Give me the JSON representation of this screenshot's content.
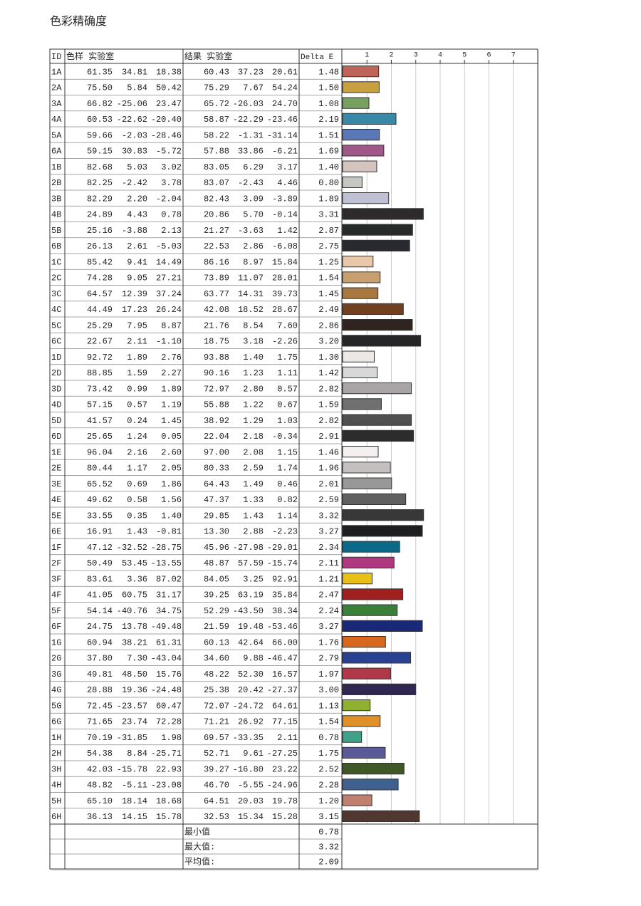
{
  "title": "色彩精确度",
  "table": {
    "header": [
      "ID",
      "色样 实验室",
      "结果 实验室",
      "Delta E"
    ],
    "axis": {
      "xlim": [
        0,
        8
      ],
      "xticks": [
        1,
        2,
        3,
        4,
        5,
        6,
        7
      ]
    },
    "rows": [
      {
        "id": "1A",
        "sample": [
          "61.35",
          "34.81",
          "18.38"
        ],
        "result": [
          "60.43",
          "37.23",
          "20.61"
        ],
        "delta_e": "1.48",
        "color": "#c0645a"
      },
      {
        "id": "2A",
        "sample": [
          "75.50",
          "5.84",
          "50.42"
        ],
        "result": [
          "75.29",
          "7.67",
          "54.24"
        ],
        "delta_e": "1.50",
        "color": "#c8a040"
      },
      {
        "id": "3A",
        "sample": [
          "66.82",
          "-25.06",
          "23.47"
        ],
        "result": [
          "65.72",
          "-26.03",
          "24.70"
        ],
        "delta_e": "1.08",
        "color": "#78a060"
      },
      {
        "id": "4A",
        "sample": [
          "60.53",
          "-22.62",
          "-20.40"
        ],
        "result": [
          "58.87",
          "-22.29",
          "-23.46"
        ],
        "delta_e": "2.19",
        "color": "#3a88a8"
      },
      {
        "id": "5A",
        "sample": [
          "59.66",
          "-2.03",
          "-28.46"
        ],
        "result": [
          "58.22",
          "-1.31",
          "-31.14"
        ],
        "delta_e": "1.51",
        "color": "#5a78b8"
      },
      {
        "id": "6A",
        "sample": [
          "59.15",
          "30.83",
          "-5.72"
        ],
        "result": [
          "57.88",
          "33.86",
          "-6.21"
        ],
        "delta_e": "1.69",
        "color": "#a05888"
      },
      {
        "id": "1B",
        "sample": [
          "82.68",
          "5.03",
          "3.02"
        ],
        "result": [
          "83.05",
          "6.29",
          "3.17"
        ],
        "delta_e": "1.40",
        "color": "#d4c4c0"
      },
      {
        "id": "2B",
        "sample": [
          "82.25",
          "-2.42",
          "3.78"
        ],
        "result": [
          "83.07",
          "-2.43",
          "4.46"
        ],
        "delta_e": "0.80",
        "color": "#c4c8c0"
      },
      {
        "id": "3B",
        "sample": [
          "82.29",
          "2.20",
          "-2.04"
        ],
        "result": [
          "82.43",
          "3.09",
          "-3.89"
        ],
        "delta_e": "1.89",
        "color": "#c0c0d4"
      },
      {
        "id": "4B",
        "sample": [
          "24.89",
          "4.43",
          "0.78"
        ],
        "result": [
          "20.86",
          "5.70",
          "-0.14"
        ],
        "delta_e": "3.31",
        "color": "#2e2a2c"
      },
      {
        "id": "5B",
        "sample": [
          "25.16",
          "-3.88",
          "2.13"
        ],
        "result": [
          "21.27",
          "-3.63",
          "1.42"
        ],
        "delta_e": "2.87",
        "color": "#262a28"
      },
      {
        "id": "6B",
        "sample": [
          "26.13",
          "2.61",
          "-5.03"
        ],
        "result": [
          "22.53",
          "2.86",
          "-6.08"
        ],
        "delta_e": "2.75",
        "color": "#282a30"
      },
      {
        "id": "1C",
        "sample": [
          "85.42",
          "9.41",
          "14.49"
        ],
        "result": [
          "86.16",
          "8.97",
          "15.84"
        ],
        "delta_e": "1.25",
        "color": "#e8c8a8"
      },
      {
        "id": "2C",
        "sample": [
          "74.28",
          "9.05",
          "27.21"
        ],
        "result": [
          "73.89",
          "11.07",
          "28.01"
        ],
        "delta_e": "1.54",
        "color": "#c8a070"
      },
      {
        "id": "3C",
        "sample": [
          "64.57",
          "12.39",
          "37.24"
        ],
        "result": [
          "63.77",
          "14.31",
          "39.73"
        ],
        "delta_e": "1.45",
        "color": "#a87840"
      },
      {
        "id": "4C",
        "sample": [
          "44.49",
          "17.23",
          "26.24"
        ],
        "result": [
          "42.08",
          "18.52",
          "28.67"
        ],
        "delta_e": "2.49",
        "color": "#704020"
      },
      {
        "id": "5C",
        "sample": [
          "25.29",
          "7.95",
          "8.87"
        ],
        "result": [
          "21.76",
          "8.54",
          "7.60"
        ],
        "delta_e": "2.86",
        "color": "#302420"
      },
      {
        "id": "6C",
        "sample": [
          "22.67",
          "2.11",
          "-1.10"
        ],
        "result": [
          "18.75",
          "3.18",
          "-2.26"
        ],
        "delta_e": "3.20",
        "color": "#262628"
      },
      {
        "id": "1D",
        "sample": [
          "92.72",
          "1.89",
          "2.76"
        ],
        "result": [
          "93.88",
          "1.40",
          "1.75"
        ],
        "delta_e": "1.30",
        "color": "#ece8e4"
      },
      {
        "id": "2D",
        "sample": [
          "88.85",
          "1.59",
          "2.27"
        ],
        "result": [
          "90.16",
          "1.23",
          "1.11"
        ],
        "delta_e": "1.42",
        "color": "#d8d8d8"
      },
      {
        "id": "3D",
        "sample": [
          "73.42",
          "0.99",
          "1.89"
        ],
        "result": [
          "72.97",
          "2.80",
          "0.57"
        ],
        "delta_e": "2.82",
        "color": "#a8a4a8"
      },
      {
        "id": "4D",
        "sample": [
          "57.15",
          "0.57",
          "1.19"
        ],
        "result": [
          "55.88",
          "1.22",
          "0.67"
        ],
        "delta_e": "1.59",
        "color": "#707070"
      },
      {
        "id": "5D",
        "sample": [
          "41.57",
          "0.24",
          "1.45"
        ],
        "result": [
          "38.92",
          "1.29",
          "1.03"
        ],
        "delta_e": "2.82",
        "color": "#505050"
      },
      {
        "id": "6D",
        "sample": [
          "25.65",
          "1.24",
          "0.05"
        ],
        "result": [
          "22.04",
          "2.18",
          "-0.34"
        ],
        "delta_e": "2.91",
        "color": "#2c2c2c"
      },
      {
        "id": "1E",
        "sample": [
          "96.04",
          "2.16",
          "2.60"
        ],
        "result": [
          "97.00",
          "2.08",
          "1.15"
        ],
        "delta_e": "1.46",
        "color": "#f4f0f0"
      },
      {
        "id": "2E",
        "sample": [
          "80.44",
          "1.17",
          "2.05"
        ],
        "result": [
          "80.33",
          "2.59",
          "1.74"
        ],
        "delta_e": "1.96",
        "color": "#c4c0c0"
      },
      {
        "id": "3E",
        "sample": [
          "65.52",
          "0.69",
          "1.86"
        ],
        "result": [
          "64.43",
          "1.49",
          "0.46"
        ],
        "delta_e": "2.01",
        "color": "#989898"
      },
      {
        "id": "4E",
        "sample": [
          "49.62",
          "0.58",
          "1.56"
        ],
        "result": [
          "47.37",
          "1.33",
          "0.82"
        ],
        "delta_e": "2.59",
        "color": "#606060"
      },
      {
        "id": "5E",
        "sample": [
          "33.55",
          "0.35",
          "1.40"
        ],
        "result": [
          "29.85",
          "1.43",
          "1.14"
        ],
        "delta_e": "3.32",
        "color": "#383838"
      },
      {
        "id": "6E",
        "sample": [
          "16.91",
          "1.43",
          "-0.81"
        ],
        "result": [
          "13.30",
          "2.88",
          "-2.23"
        ],
        "delta_e": "3.27",
        "color": "#1e1e20"
      },
      {
        "id": "1F",
        "sample": [
          "47.12",
          "-32.52",
          "-28.75"
        ],
        "result": [
          "45.96",
          "-27.98",
          "-29.01"
        ],
        "delta_e": "2.34",
        "color": "#0a6888"
      },
      {
        "id": "2F",
        "sample": [
          "50.49",
          "53.45",
          "-13.55"
        ],
        "result": [
          "48.87",
          "57.59",
          "-15.74"
        ],
        "delta_e": "2.11",
        "color": "#b03880"
      },
      {
        "id": "3F",
        "sample": [
          "83.61",
          "3.36",
          "87.02"
        ],
        "result": [
          "84.05",
          "3.25",
          "92.91"
        ],
        "delta_e": "1.21",
        "color": "#e8c018"
      },
      {
        "id": "4F",
        "sample": [
          "41.05",
          "60.75",
          "31.17"
        ],
        "result": [
          "39.25",
          "63.19",
          "35.84"
        ],
        "delta_e": "2.47",
        "color": "#a02020"
      },
      {
        "id": "5F",
        "sample": [
          "54.14",
          "-40.76",
          "34.75"
        ],
        "result": [
          "52.29",
          "-43.50",
          "38.34"
        ],
        "delta_e": "2.24",
        "color": "#3a8038"
      },
      {
        "id": "6F",
        "sample": [
          "24.75",
          "13.78",
          "-49.48"
        ],
        "result": [
          "21.59",
          "19.48",
          "-53.46"
        ],
        "delta_e": "3.27",
        "color": "#1a2878"
      },
      {
        "id": "1G",
        "sample": [
          "60.94",
          "38.21",
          "61.31"
        ],
        "result": [
          "60.13",
          "42.64",
          "66.00"
        ],
        "delta_e": "1.76",
        "color": "#d86820"
      },
      {
        "id": "2G",
        "sample": [
          "37.80",
          "7.30",
          "-43.04"
        ],
        "result": [
          "34.60",
          "9.88",
          "-46.47"
        ],
        "delta_e": "2.79",
        "color": "#2a4090"
      },
      {
        "id": "3G",
        "sample": [
          "49.81",
          "48.50",
          "15.76"
        ],
        "result": [
          "48.22",
          "52.30",
          "16.57"
        ],
        "delta_e": "1.97",
        "color": "#b03848"
      },
      {
        "id": "4G",
        "sample": [
          "28.88",
          "19.36",
          "-24.48"
        ],
        "result": [
          "25.38",
          "20.42",
          "-27.37"
        ],
        "delta_e": "3.00",
        "color": "#302850"
      },
      {
        "id": "5G",
        "sample": [
          "72.45",
          "-23.57",
          "60.47"
        ],
        "result": [
          "72.07",
          "-24.72",
          "64.61"
        ],
        "delta_e": "1.13",
        "color": "#90b030"
      },
      {
        "id": "6G",
        "sample": [
          "71.65",
          "23.74",
          "72.28"
        ],
        "result": [
          "71.21",
          "26.92",
          "77.15"
        ],
        "delta_e": "1.54",
        "color": "#e09028"
      },
      {
        "id": "1H",
        "sample": [
          "70.19",
          "-31.85",
          "1.98"
        ],
        "result": [
          "69.57",
          "-33.35",
          "2.11"
        ],
        "delta_e": "0.78",
        "color": "#40a088"
      },
      {
        "id": "2H",
        "sample": [
          "54.38",
          "8.84",
          "-25.71"
        ],
        "result": [
          "52.71",
          "9.61",
          "-27.25"
        ],
        "delta_e": "1.75",
        "color": "#5a5a98"
      },
      {
        "id": "3H",
        "sample": [
          "42.03",
          "-15.78",
          "22.93"
        ],
        "result": [
          "39.27",
          "-16.80",
          "23.22"
        ],
        "delta_e": "2.52",
        "color": "#405828"
      },
      {
        "id": "4H",
        "sample": [
          "48.82",
          "-5.11",
          "-23.08"
        ],
        "result": [
          "46.70",
          "-5.55",
          "-24.96"
        ],
        "delta_e": "2.28",
        "color": "#406090"
      },
      {
        "id": "5H",
        "sample": [
          "65.10",
          "18.14",
          "18.68"
        ],
        "result": [
          "64.51",
          "20.03",
          "19.78"
        ],
        "delta_e": "1.20",
        "color": "#c08070"
      },
      {
        "id": "6H",
        "sample": [
          "36.13",
          "14.15",
          "15.78"
        ],
        "result": [
          "32.53",
          "15.34",
          "15.28"
        ],
        "delta_e": "3.15",
        "color": "#503830"
      }
    ],
    "summary": [
      {
        "label": "最小值",
        "value": "0.78"
      },
      {
        "label": "最大值:",
        "value": "3.32"
      },
      {
        "label": "平均值:",
        "value": "2.09"
      }
    ]
  }
}
